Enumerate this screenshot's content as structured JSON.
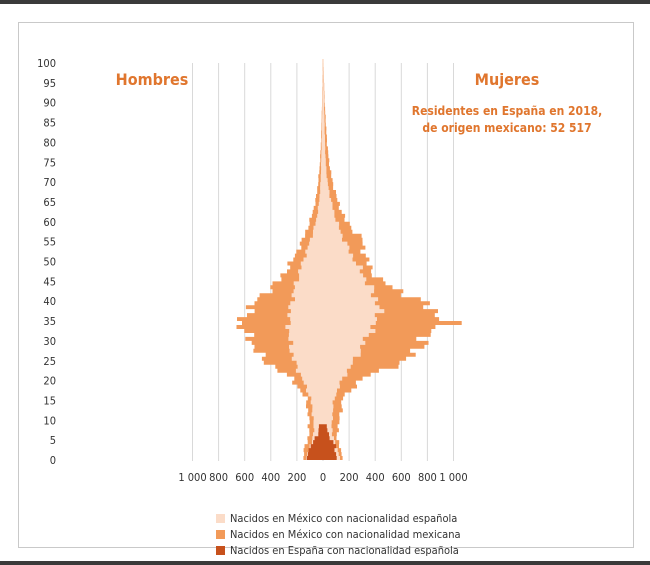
{
  "chart_data": {
    "type": "population_pyramid",
    "left_label": "Hombres",
    "right_label": "Mujeres",
    "annotation": [
      "Residentes en España en 2018,",
      "de origen mexicano: 52 517"
    ],
    "x_ticks": [
      "1 000",
      "800",
      "600",
      "400",
      "200",
      "0",
      "200",
      "400",
      "600",
      "800",
      "1 000"
    ],
    "y_ticks": [
      "0",
      "5",
      "10",
      "15",
      "20",
      "25",
      "30",
      "35",
      "40",
      "45",
      "50",
      "55",
      "60",
      "65",
      "70",
      "75",
      "80",
      "85",
      "90",
      "95",
      "100"
    ],
    "xlim": [
      -1000,
      1000
    ],
    "ylim": [
      0,
      100
    ],
    "series": [
      {
        "name": "Nacidos en México con nacionalidad española",
        "color": "#fbdcc8",
        "men_points": [
          [
            0,
            130
          ],
          [
            4,
            90
          ],
          [
            6,
            70
          ],
          [
            10,
            75
          ],
          [
            15,
            95
          ],
          [
            20,
            160
          ],
          [
            25,
            230
          ],
          [
            30,
            260
          ],
          [
            35,
            265
          ],
          [
            40,
            240
          ],
          [
            45,
            200
          ],
          [
            50,
            150
          ],
          [
            55,
            95
          ],
          [
            60,
            50
          ],
          [
            65,
            28
          ],
          [
            70,
            18
          ],
          [
            80,
            10
          ],
          [
            90,
            5
          ],
          [
            100,
            2
          ]
        ],
        "women_points": [
          [
            0,
            130
          ],
          [
            4,
            90
          ],
          [
            6,
            70
          ],
          [
            10,
            70
          ],
          [
            15,
            85
          ],
          [
            20,
            150
          ],
          [
            25,
            250
          ],
          [
            30,
            330
          ],
          [
            35,
            420
          ],
          [
            38,
            430
          ],
          [
            40,
            410
          ],
          [
            45,
            330
          ],
          [
            50,
            240
          ],
          [
            55,
            160
          ],
          [
            60,
            100
          ],
          [
            65,
            60
          ],
          [
            70,
            32
          ],
          [
            75,
            20
          ],
          [
            80,
            15
          ],
          [
            90,
            8
          ],
          [
            100,
            3
          ]
        ]
      },
      {
        "name": "Nacidos en México con nacionalidad mexicana",
        "color": "#f29a59",
        "men_points": [
          [
            0,
            150
          ],
          [
            4,
            130
          ],
          [
            6,
            105
          ],
          [
            10,
            110
          ],
          [
            15,
            130
          ],
          [
            20,
            240
          ],
          [
            25,
            470
          ],
          [
            30,
            560
          ],
          [
            32,
            610
          ],
          [
            34,
            640
          ],
          [
            36,
            600
          ],
          [
            40,
            500
          ],
          [
            45,
            330
          ],
          [
            50,
            230
          ],
          [
            55,
            155
          ],
          [
            60,
            95
          ],
          [
            65,
            55
          ],
          [
            70,
            35
          ],
          [
            75,
            22
          ],
          [
            80,
            15
          ],
          [
            90,
            7
          ],
          [
            100,
            3
          ]
        ],
        "women_points": [
          [
            0,
            150
          ],
          [
            4,
            120
          ],
          [
            6,
            105
          ],
          [
            10,
            130
          ],
          [
            15,
            150
          ],
          [
            20,
            300
          ],
          [
            25,
            670
          ],
          [
            30,
            780
          ],
          [
            33,
            880
          ],
          [
            34,
            960
          ],
          [
            36,
            900
          ],
          [
            40,
            720
          ],
          [
            45,
            420
          ],
          [
            50,
            330
          ],
          [
            55,
            300
          ],
          [
            60,
            170
          ],
          [
            65,
            110
          ],
          [
            70,
            70
          ],
          [
            75,
            45
          ],
          [
            80,
            30
          ],
          [
            90,
            12
          ],
          [
            100,
            4
          ]
        ]
      },
      {
        "name": "Nacidos en España con nacionalidad española",
        "color": "#c7511c",
        "men_points": [
          [
            0,
            125
          ],
          [
            1,
            115
          ],
          [
            2,
            105
          ],
          [
            3,
            95
          ],
          [
            4,
            75
          ],
          [
            5,
            60
          ],
          [
            6,
            40
          ],
          [
            7,
            35
          ],
          [
            8,
            30
          ]
        ],
        "women_points": [
          [
            0,
            105
          ],
          [
            1,
            100
          ],
          [
            2,
            95
          ],
          [
            3,
            95
          ],
          [
            4,
            75
          ],
          [
            5,
            55
          ],
          [
            6,
            45
          ],
          [
            7,
            35
          ],
          [
            8,
            30
          ]
        ]
      }
    ]
  }
}
